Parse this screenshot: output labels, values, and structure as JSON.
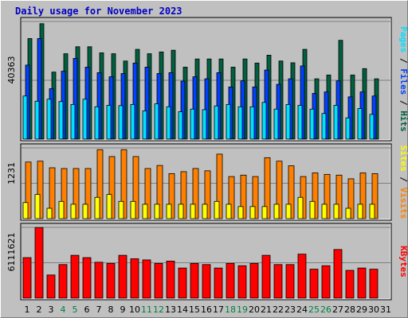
{
  "title": "Daily usage for November 2023",
  "colors": {
    "hits": "#006040",
    "files": "#0040ff",
    "pages": "#00e0ff",
    "visits": "#ff8000",
    "sites": "#ffff00",
    "kbytes": "#ff0000",
    "weekend_label": "#008040",
    "panel_bg": "#c0c0c0"
  },
  "chart_data": [
    {
      "type": "bar",
      "name": "hits-files-pages",
      "ymax_label": "40363",
      "ymax": 40363,
      "right_labels": [
        "Hits",
        "Files",
        "Pages"
      ],
      "categories": [
        "1",
        "2",
        "3",
        "4",
        "5",
        "6",
        "7",
        "8",
        "9",
        "10",
        "11",
        "12",
        "13",
        "14",
        "15",
        "16",
        "17",
        "18",
        "19",
        "20",
        "21",
        "22",
        "23",
        "24",
        "25",
        "26",
        "27",
        "28",
        "29",
        "30",
        "31"
      ],
      "weekend_days": [
        "4",
        "5",
        "11",
        "12",
        "18",
        "19",
        "25",
        "26"
      ],
      "series": [
        {
          "name": "Hits",
          "values": [
            34500,
            39600,
            23000,
            29300,
            31700,
            31700,
            29600,
            29300,
            26800,
            30800,
            29300,
            29900,
            30500,
            24700,
            27500,
            27500,
            27500,
            24700,
            27500,
            26100,
            28800,
            26800,
            26200,
            30800,
            20700,
            22000,
            33900,
            22000,
            24200,
            20700,
            0
          ]
        },
        {
          "name": "Files",
          "values": [
            25400,
            34500,
            17300,
            23300,
            27700,
            24700,
            22800,
            21400,
            22500,
            26100,
            24700,
            22500,
            22800,
            19900,
            21400,
            20700,
            22800,
            17900,
            20000,
            17900,
            23700,
            18800,
            20700,
            25100,
            15700,
            16200,
            20000,
            14500,
            16200,
            14800,
            0
          ]
        },
        {
          "name": "Pages",
          "values": [
            14800,
            13000,
            13700,
            12900,
            11900,
            13700,
            11100,
            11600,
            11500,
            11900,
            9700,
            12100,
            11100,
            9400,
            10300,
            10100,
            11400,
            11900,
            11100,
            11100,
            12600,
            10300,
            11900,
            11600,
            10300,
            8800,
            11600,
            7300,
            10500,
            8500,
            0
          ]
        }
      ]
    },
    {
      "type": "bar",
      "name": "visits-sites",
      "ymax_label": "1231",
      "ymax": 1231,
      "right_labels": [
        "Visits",
        "Sites"
      ],
      "categories": [
        "1",
        "2",
        "3",
        "4",
        "5",
        "6",
        "7",
        "8",
        "9",
        "10",
        "11",
        "12",
        "13",
        "14",
        "15",
        "16",
        "17",
        "18",
        "19",
        "20",
        "21",
        "22",
        "23",
        "24",
        "25",
        "26",
        "27",
        "28",
        "29",
        "30",
        "31"
      ],
      "series": [
        {
          "name": "Visits",
          "values": [
            985,
            1000,
            885,
            872,
            872,
            872,
            1200,
            1080,
            1200,
            1080,
            872,
            925,
            783,
            817,
            872,
            832,
            1122,
            732,
            757,
            732,
            1060,
            1000,
            920,
            732,
            795,
            770,
            757,
            693,
            795,
            783,
            0
          ]
        },
        {
          "name": "Sites",
          "values": [
            280,
            420,
            180,
            300,
            250,
            250,
            370,
            420,
            300,
            300,
            250,
            250,
            250,
            250,
            250,
            250,
            300,
            250,
            210,
            210,
            210,
            250,
            250,
            370,
            300,
            250,
            250,
            180,
            250,
            250,
            0
          ]
        }
      ]
    },
    {
      "type": "bar",
      "name": "kbytes",
      "ymax_label": "6111621",
      "ymax": 6111621,
      "right_labels": [
        "KBytes"
      ],
      "categories": [
        "1",
        "2",
        "3",
        "4",
        "5",
        "6",
        "7",
        "8",
        "9",
        "10",
        "11",
        "12",
        "13",
        "14",
        "15",
        "16",
        "17",
        "18",
        "19",
        "20",
        "21",
        "22",
        "23",
        "24",
        "25",
        "26",
        "27",
        "28",
        "29",
        "30",
        "31"
      ],
      "series": [
        {
          "name": "KBytes",
          "values": [
            3500000,
            6100000,
            2000000,
            2900000,
            3700000,
            3500000,
            3100000,
            3000000,
            3700000,
            3400000,
            3300000,
            3000000,
            3200000,
            2600000,
            3000000,
            2900000,
            2600000,
            3000000,
            2800000,
            3000000,
            3700000,
            2900000,
            2900000,
            3800000,
            2500000,
            2800000,
            4200000,
            2400000,
            2600000,
            2500000,
            0
          ]
        }
      ]
    }
  ]
}
